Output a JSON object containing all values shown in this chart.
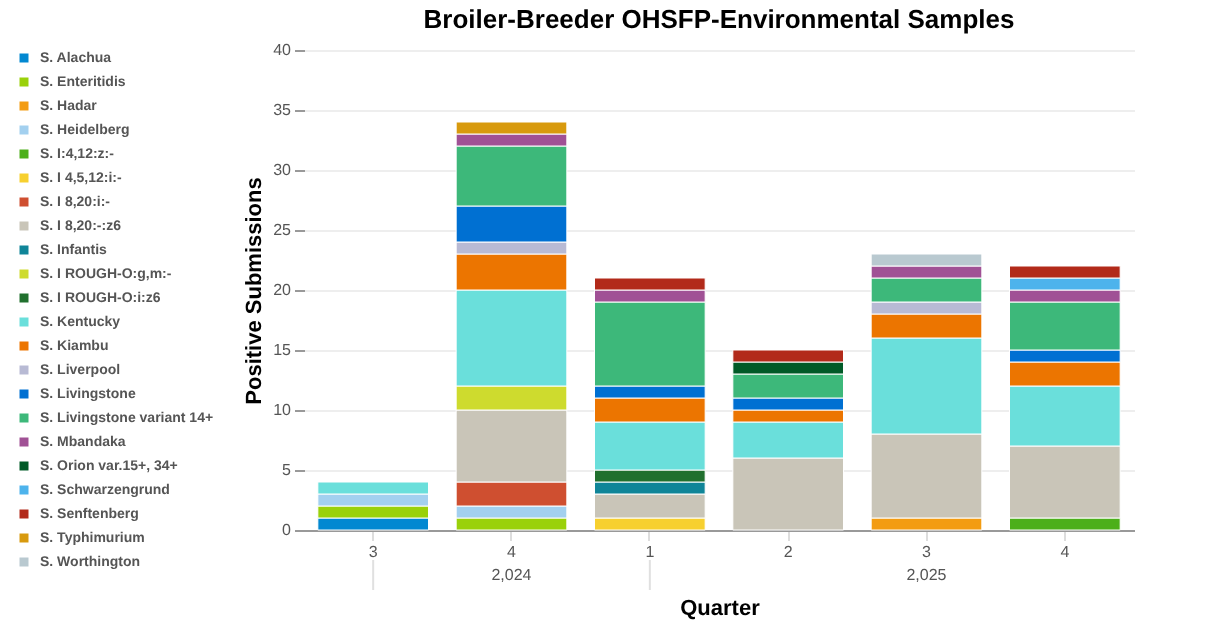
{
  "chart_data": {
    "type": "bar",
    "title": "Broiler-Breeder OHSFP-Environmental Samples",
    "xlabel": "Quarter",
    "ylabel": "Positive Submissions",
    "categories": [
      "3",
      "4",
      "1",
      "2",
      "3",
      "4"
    ],
    "annotations": [
      "2,024",
      "2,025"
    ],
    "stacked": true,
    "ylim": [
      0,
      40
    ],
    "yticks": [
      0,
      5,
      10,
      15,
      20,
      25,
      30,
      35,
      40
    ],
    "grid": "y",
    "legend": "left",
    "series": [
      {
        "name": "S. Alachua",
        "color": "#0288d1",
        "values": [
          1,
          null,
          null,
          null,
          null,
          null
        ]
      },
      {
        "name": "S. Enteritidis",
        "color": "#9ad10a",
        "values": [
          1,
          1,
          null,
          null,
          null,
          null
        ]
      },
      {
        "name": "S. Hadar",
        "color": "#f39c12",
        "values": [
          null,
          null,
          null,
          null,
          1,
          null
        ]
      },
      {
        "name": "S. Heidelberg",
        "color": "#a3d0ef",
        "values": [
          1,
          1,
          null,
          null,
          null,
          null
        ]
      },
      {
        "name": "S. I:4,12:z:-",
        "color": "#4caf1a",
        "values": [
          null,
          null,
          null,
          null,
          null,
          1
        ]
      },
      {
        "name": "S. I 4,5,12:i:-",
        "color": "#f7d02f",
        "values": [
          null,
          null,
          1,
          null,
          null,
          null
        ]
      },
      {
        "name": "S. I 8,20:i:-",
        "color": "#cf4f30",
        "values": [
          null,
          2,
          null,
          null,
          null,
          null
        ]
      },
      {
        "name": "S. I 8,20:-:z6",
        "color": "#c9c5b8",
        "values": [
          null,
          6,
          2,
          6,
          7,
          6
        ]
      },
      {
        "name": "S. Infantis",
        "color": "#0f8598",
        "values": [
          null,
          null,
          1,
          null,
          null,
          null
        ]
      },
      {
        "name": "S. I ROUGH-O:g,m:-",
        "color": "#cedb2e",
        "values": [
          null,
          2,
          null,
          null,
          null,
          null
        ]
      },
      {
        "name": "S. I ROUGH-O:i:z6",
        "color": "#21702e",
        "values": [
          null,
          null,
          1,
          null,
          null,
          null
        ]
      },
      {
        "name": "S. Kentucky",
        "color": "#6adfdb",
        "values": [
          1,
          8,
          4,
          3,
          8,
          5
        ]
      },
      {
        "name": "S. Kiambu",
        "color": "#ec7500",
        "values": [
          null,
          3,
          2,
          1,
          2,
          2
        ]
      },
      {
        "name": "S. Liverpool",
        "color": "#b8bad4",
        "values": [
          null,
          1,
          null,
          null,
          1,
          null
        ]
      },
      {
        "name": "S. Livingstone",
        "color": "#0070d2",
        "values": [
          null,
          3,
          1,
          1,
          null,
          1
        ]
      },
      {
        "name": "S. Livingstone variant 14+",
        "color": "#3db87a",
        "values": [
          null,
          5,
          7,
          2,
          2,
          4
        ]
      },
      {
        "name": "S. Mbandaka",
        "color": "#a05195",
        "values": [
          null,
          1,
          1,
          null,
          1,
          1
        ]
      },
      {
        "name": "S. Orion var.15+, 34+",
        "color": "#005a27",
        "values": [
          null,
          null,
          null,
          1,
          null,
          null
        ]
      },
      {
        "name": "S. Schwarzengrund",
        "color": "#4db3ec",
        "values": [
          null,
          null,
          null,
          null,
          null,
          1
        ]
      },
      {
        "name": "S. Senftenberg",
        "color": "#b22a1a",
        "values": [
          null,
          null,
          1,
          1,
          null,
          1
        ]
      },
      {
        "name": "S. Typhimurium",
        "color": "#d89a0e",
        "values": [
          null,
          1,
          null,
          null,
          null,
          null
        ]
      },
      {
        "name": "S. Worthington",
        "color": "#b9c9d0",
        "values": [
          null,
          null,
          null,
          null,
          1,
          null
        ]
      }
    ]
  }
}
